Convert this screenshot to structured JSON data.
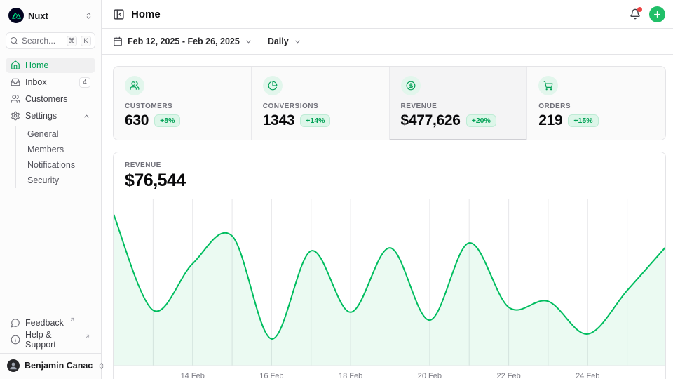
{
  "sidebar": {
    "team": {
      "name": "Nuxt"
    },
    "search": {
      "placeholder": "Search...",
      "kbd_meta": "⌘",
      "kbd_key": "K"
    },
    "items": [
      {
        "label": "Home"
      },
      {
        "label": "Inbox",
        "badge": "4"
      },
      {
        "label": "Customers"
      },
      {
        "label": "Settings"
      }
    ],
    "settings_children": [
      {
        "label": "General"
      },
      {
        "label": "Members"
      },
      {
        "label": "Notifications"
      },
      {
        "label": "Security"
      }
    ],
    "footer_items": [
      {
        "label": "Feedback"
      },
      {
        "label": "Help & Support"
      }
    ],
    "user": {
      "name": "Benjamin Canac"
    }
  },
  "header": {
    "title": "Home"
  },
  "toolbar": {
    "date_range": "Feb 12, 2025 - Feb 26, 2025",
    "period": "Daily"
  },
  "stats": [
    {
      "label": "CUSTOMERS",
      "value": "630",
      "delta": "+8%"
    },
    {
      "label": "CONVERSIONS",
      "value": "1343",
      "delta": "+14%"
    },
    {
      "label": "REVENUE",
      "value": "$477,626",
      "delta": "+20%"
    },
    {
      "label": "ORDERS",
      "value": "219",
      "delta": "+15%"
    }
  ],
  "chart_panel": {
    "label": "REVENUE",
    "value": "$76,544"
  },
  "chart_data": {
    "type": "area",
    "title": "Revenue (daily)",
    "x": [
      "12 Feb",
      "13 Feb",
      "14 Feb",
      "15 Feb",
      "16 Feb",
      "17 Feb",
      "18 Feb",
      "19 Feb",
      "20 Feb",
      "21 Feb",
      "22 Feb",
      "23 Feb",
      "24 Feb",
      "25 Feb",
      "26 Feb"
    ],
    "values": [
      76500,
      28000,
      51500,
      65500,
      13500,
      58000,
      27000,
      59500,
      23000,
      62000,
      29500,
      32500,
      16000,
      38000,
      60500
    ],
    "ylim": [
      0,
      84000
    ],
    "x_tick_indices": [
      2,
      4,
      6,
      8,
      10,
      12
    ],
    "grid": "vertical-only",
    "legend": "none",
    "line_color": "#00bd5f",
    "fill_color": "rgba(0,189,95,0.08)",
    "grid_color": "#e7e7ea",
    "tick_color": "#7c7c85"
  },
  "colors": {
    "primary": "#00bd5f",
    "primary_text": "#00a155",
    "badge_bg": "#ddf6e9",
    "notification_dot": "#ef4444",
    "logo_bg": "#020420",
    "logo_green": "#00dc82"
  }
}
